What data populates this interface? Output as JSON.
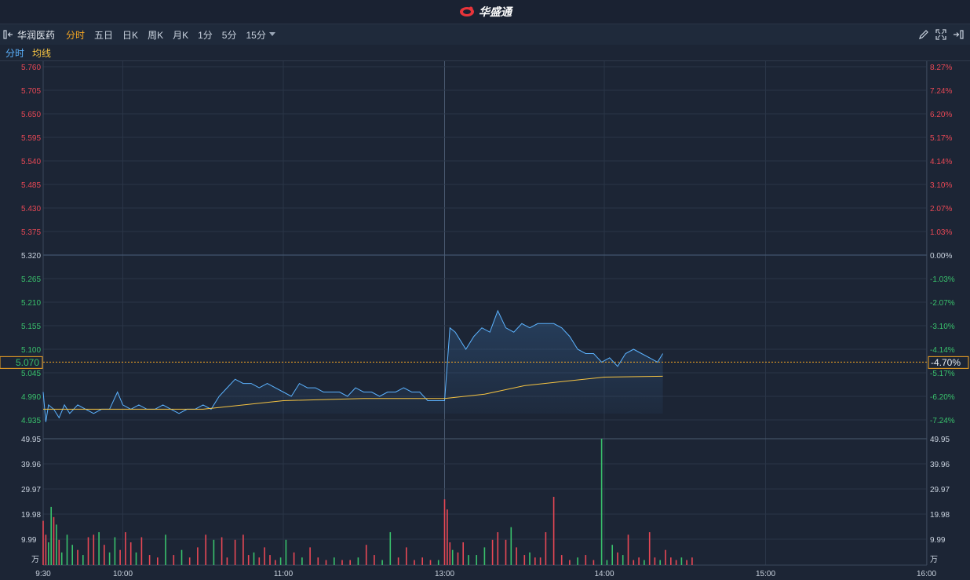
{
  "app": {
    "brand_name": "华盛通"
  },
  "toolbar": {
    "stock_name": "华润医药",
    "tabs": [
      {
        "label": "分时",
        "active": true
      },
      {
        "label": "五日",
        "active": false
      },
      {
        "label": "日K",
        "active": false
      },
      {
        "label": "周K",
        "active": false
      },
      {
        "label": "月K",
        "active": false
      },
      {
        "label": "1分",
        "active": false
      },
      {
        "label": "5分",
        "active": false
      },
      {
        "label": "15分",
        "active": false,
        "dropdown": true
      }
    ]
  },
  "legend": {
    "minute_label": "分时",
    "avg_label": "均线"
  },
  "colors": {
    "up": "#e84855",
    "down": "#39c16c",
    "price_line": "#5cb3ff",
    "avg_line": "#f5c342",
    "crosshair": "#f5a623",
    "grid": "#2a3547"
  },
  "crosshair": {
    "price_label": "5.070",
    "pct_label": "-4.70%",
    "price": 5.07
  },
  "chart_data": {
    "type": "line",
    "prev_close": 5.32,
    "ylim": [
      4.905,
      5.76
    ],
    "price_ticks": [
      "5.760",
      "5.705",
      "5.650",
      "5.595",
      "5.540",
      "5.485",
      "5.430",
      "5.375",
      "5.320",
      "5.265",
      "5.210",
      "5.155",
      "5.100",
      "5.045",
      "4.990",
      "4.935"
    ],
    "pct_ticks": [
      "8.27%",
      "7.24%",
      "6.20%",
      "5.17%",
      "4.14%",
      "3.10%",
      "2.07%",
      "1.03%",
      "0.00%",
      "-1.03%",
      "-2.07%",
      "-3.10%",
      "-4.14%",
      "-5.17%",
      "-6.20%",
      "-7.24%"
    ],
    "volume_ticks": [
      "49.95",
      "39.96",
      "29.97",
      "19.98",
      "9.99"
    ],
    "volume_unit": "万",
    "volume_max": 49.95,
    "x_ticks": [
      "9:30",
      "10:00",
      "11:00",
      "13:00",
      "14:00",
      "15:00",
      "16:00"
    ],
    "session": "9:30-12:00, 13:00-16:00",
    "price_series_name": "分时",
    "avg_series_name": "均线",
    "price": [
      [
        "9:30",
        5.0
      ],
      [
        "9:31",
        4.93
      ],
      [
        "9:32",
        4.97
      ],
      [
        "9:34",
        4.96
      ],
      [
        "9:36",
        4.94
      ],
      [
        "9:38",
        4.97
      ],
      [
        "9:40",
        4.95
      ],
      [
        "9:43",
        4.97
      ],
      [
        "9:46",
        4.96
      ],
      [
        "9:49",
        4.95
      ],
      [
        "9:52",
        4.96
      ],
      [
        "9:55",
        4.96
      ],
      [
        "9:58",
        5.0
      ],
      [
        "10:00",
        4.97
      ],
      [
        "10:03",
        4.96
      ],
      [
        "10:06",
        4.97
      ],
      [
        "10:09",
        4.96
      ],
      [
        "10:12",
        4.96
      ],
      [
        "10:15",
        4.97
      ],
      [
        "10:18",
        4.96
      ],
      [
        "10:21",
        4.95
      ],
      [
        "10:24",
        4.96
      ],
      [
        "10:27",
        4.96
      ],
      [
        "10:30",
        4.97
      ],
      [
        "10:33",
        4.96
      ],
      [
        "10:36",
        4.99
      ],
      [
        "10:39",
        5.01
      ],
      [
        "10:42",
        5.03
      ],
      [
        "10:45",
        5.02
      ],
      [
        "10:48",
        5.02
      ],
      [
        "10:51",
        5.01
      ],
      [
        "10:54",
        5.02
      ],
      [
        "10:57",
        5.01
      ],
      [
        "11:00",
        5.0
      ],
      [
        "11:03",
        4.99
      ],
      [
        "11:06",
        5.02
      ],
      [
        "11:09",
        5.01
      ],
      [
        "11:12",
        5.01
      ],
      [
        "11:15",
        5.0
      ],
      [
        "11:18",
        5.0
      ],
      [
        "11:21",
        5.0
      ],
      [
        "11:24",
        4.99
      ],
      [
        "11:27",
        5.01
      ],
      [
        "11:30",
        5.0
      ],
      [
        "11:33",
        5.0
      ],
      [
        "11:36",
        4.99
      ],
      [
        "11:39",
        5.0
      ],
      [
        "11:42",
        5.0
      ],
      [
        "11:45",
        5.01
      ],
      [
        "11:48",
        5.0
      ],
      [
        "11:51",
        5.0
      ],
      [
        "11:54",
        4.98
      ],
      [
        "11:57",
        4.98
      ],
      [
        "12:00",
        4.98
      ],
      [
        "13:00",
        4.98
      ],
      [
        "13:02",
        5.15
      ],
      [
        "13:04",
        5.14
      ],
      [
        "13:08",
        5.1
      ],
      [
        "13:11",
        5.13
      ],
      [
        "13:14",
        5.15
      ],
      [
        "13:17",
        5.14
      ],
      [
        "13:20",
        5.19
      ],
      [
        "13:23",
        5.15
      ],
      [
        "13:26",
        5.14
      ],
      [
        "13:29",
        5.16
      ],
      [
        "13:32",
        5.15
      ],
      [
        "13:35",
        5.16
      ],
      [
        "13:38",
        5.16
      ],
      [
        "13:41",
        5.16
      ],
      [
        "13:44",
        5.15
      ],
      [
        "13:47",
        5.13
      ],
      [
        "13:50",
        5.1
      ],
      [
        "13:53",
        5.09
      ],
      [
        "13:56",
        5.09
      ],
      [
        "13:59",
        5.07
      ],
      [
        "14:02",
        5.08
      ],
      [
        "14:05",
        5.06
      ],
      [
        "14:08",
        5.09
      ],
      [
        "14:11",
        5.1
      ],
      [
        "14:14",
        5.09
      ],
      [
        "14:17",
        5.08
      ],
      [
        "14:20",
        5.07
      ],
      [
        "14:22",
        5.09
      ]
    ],
    "average": [
      [
        "9:30",
        4.96
      ],
      [
        "10:00",
        4.96
      ],
      [
        "10:30",
        4.96
      ],
      [
        "11:00",
        4.98
      ],
      [
        "11:30",
        4.985
      ],
      [
        "12:00",
        4.985
      ],
      [
        "13:00",
        4.985
      ],
      [
        "13:15",
        4.995
      ],
      [
        "13:30",
        5.015
      ],
      [
        "13:45",
        5.025
      ],
      [
        "14:00",
        5.035
      ],
      [
        "14:22",
        5.037
      ]
    ],
    "volume": [
      [
        "9:30",
        17.5,
        "up"
      ],
      [
        "9:31",
        12,
        "up"
      ],
      [
        "9:32",
        9,
        "down"
      ],
      [
        "9:33",
        23,
        "down"
      ],
      [
        "9:34",
        19,
        "up"
      ],
      [
        "9:35",
        16,
        "down"
      ],
      [
        "9:36",
        10,
        "up"
      ],
      [
        "9:37",
        5,
        "down"
      ],
      [
        "9:39",
        12,
        "down"
      ],
      [
        "9:41",
        8,
        "down"
      ],
      [
        "9:43",
        6,
        "up"
      ],
      [
        "9:45",
        4,
        "down"
      ],
      [
        "9:47",
        11,
        "up"
      ],
      [
        "9:49",
        12,
        "up"
      ],
      [
        "9:51",
        13,
        "down"
      ],
      [
        "9:53",
        8,
        "up"
      ],
      [
        "9:55",
        5,
        "down"
      ],
      [
        "9:57",
        11,
        "down"
      ],
      [
        "9:59",
        6,
        "up"
      ],
      [
        "10:01",
        13,
        "up"
      ],
      [
        "10:03",
        9,
        "up"
      ],
      [
        "10:05",
        5,
        "down"
      ],
      [
        "10:07",
        11,
        "up"
      ],
      [
        "10:10",
        4,
        "up"
      ],
      [
        "10:13",
        3,
        "up"
      ],
      [
        "10:16",
        12,
        "down"
      ],
      [
        "10:19",
        4,
        "up"
      ],
      [
        "10:22",
        6,
        "down"
      ],
      [
        "10:25",
        3,
        "up"
      ],
      [
        "10:28",
        7,
        "up"
      ],
      [
        "10:31",
        12,
        "up"
      ],
      [
        "10:34",
        10,
        "down"
      ],
      [
        "10:37",
        11,
        "up"
      ],
      [
        "10:39",
        3,
        "up"
      ],
      [
        "10:42",
        10,
        "up"
      ],
      [
        "10:45",
        12,
        "up"
      ],
      [
        "10:47",
        4,
        "up"
      ],
      [
        "10:49",
        5,
        "down"
      ],
      [
        "10:51",
        3,
        "up"
      ],
      [
        "10:53",
        7,
        "up"
      ],
      [
        "10:55",
        4,
        "up"
      ],
      [
        "10:57",
        2,
        "up"
      ],
      [
        "10:59",
        3,
        "down"
      ],
      [
        "11:01",
        10,
        "down"
      ],
      [
        "11:04",
        5,
        "up"
      ],
      [
        "11:07",
        3,
        "down"
      ],
      [
        "11:10",
        7,
        "up"
      ],
      [
        "11:13",
        3,
        "up"
      ],
      [
        "11:16",
        2,
        "up"
      ],
      [
        "11:19",
        3,
        "down"
      ],
      [
        "11:22",
        2,
        "up"
      ],
      [
        "11:25",
        2,
        "up"
      ],
      [
        "11:28",
        3,
        "down"
      ],
      [
        "11:31",
        8,
        "up"
      ],
      [
        "11:34",
        4,
        "up"
      ],
      [
        "11:37",
        2,
        "down"
      ],
      [
        "11:40",
        13,
        "down"
      ],
      [
        "11:43",
        3,
        "up"
      ],
      [
        "11:46",
        7,
        "up"
      ],
      [
        "11:49",
        2,
        "up"
      ],
      [
        "11:52",
        3,
        "up"
      ],
      [
        "11:55",
        2,
        "up"
      ],
      [
        "11:58",
        2,
        "down"
      ],
      [
        "13:00",
        26,
        "up"
      ],
      [
        "13:01",
        22,
        "up"
      ],
      [
        "13:02",
        9,
        "up"
      ],
      [
        "13:03",
        6,
        "down"
      ],
      [
        "13:05",
        5,
        "up"
      ],
      [
        "13:07",
        9,
        "up"
      ],
      [
        "13:09",
        4,
        "down"
      ],
      [
        "13:12",
        4,
        "down"
      ],
      [
        "13:15",
        7,
        "down"
      ],
      [
        "13:18",
        10,
        "up"
      ],
      [
        "13:20",
        13,
        "up"
      ],
      [
        "13:23",
        10,
        "up"
      ],
      [
        "13:25",
        15,
        "down"
      ],
      [
        "13:27",
        7,
        "up"
      ],
      [
        "13:30",
        4,
        "up"
      ],
      [
        "13:32",
        5,
        "down"
      ],
      [
        "13:34",
        3,
        "up"
      ],
      [
        "13:36",
        3,
        "up"
      ],
      [
        "13:38",
        13,
        "up"
      ],
      [
        "13:41",
        27,
        "up"
      ],
      [
        "13:44",
        4,
        "up"
      ],
      [
        "13:47",
        2,
        "up"
      ],
      [
        "13:50",
        3,
        "down"
      ],
      [
        "13:53",
        4,
        "up"
      ],
      [
        "13:56",
        2,
        "up"
      ],
      [
        "13:59",
        49.95,
        "down"
      ],
      [
        "14:01",
        2,
        "down"
      ],
      [
        "14:03",
        8,
        "down"
      ],
      [
        "14:05",
        5,
        "up"
      ],
      [
        "14:07",
        4,
        "down"
      ],
      [
        "14:09",
        12,
        "up"
      ],
      [
        "14:11",
        2,
        "up"
      ],
      [
        "14:13",
        3,
        "up"
      ],
      [
        "14:15",
        2,
        "down"
      ],
      [
        "14:17",
        13,
        "up"
      ],
      [
        "14:19",
        3,
        "up"
      ],
      [
        "14:21",
        2,
        "down"
      ],
      [
        "14:23",
        6,
        "up"
      ],
      [
        "14:25",
        3,
        "up"
      ],
      [
        "14:27",
        2,
        "up"
      ],
      [
        "14:29",
        3,
        "down"
      ],
      [
        "14:31",
        2,
        "up"
      ],
      [
        "14:33",
        3,
        "up"
      ]
    ]
  }
}
